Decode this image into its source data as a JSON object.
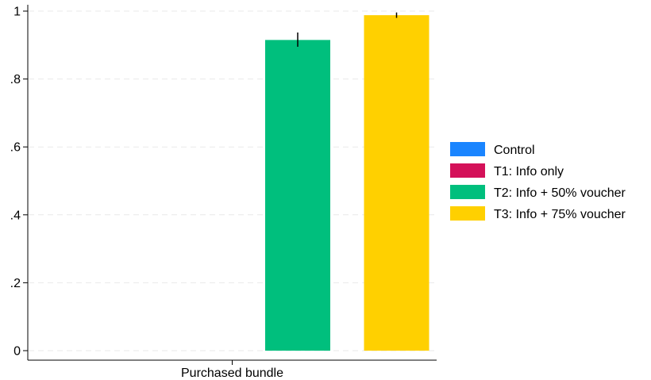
{
  "chart_data": {
    "type": "bar",
    "title": "",
    "xlabel": "",
    "ylabel": "",
    "categories": [
      "Purchased bundle"
    ],
    "ylim": [
      0,
      1
    ],
    "yticks": [
      0,
      0.2,
      0.4,
      0.6,
      0.8,
      1
    ],
    "ytick_labels": [
      "0",
      ".2",
      ".4",
      ".6",
      ".8",
      "1"
    ],
    "grid": true,
    "legend_position": "right",
    "series": [
      {
        "name": "Control",
        "values": [
          0
        ],
        "color": "#1a85ff",
        "ci": [
          0,
          0
        ]
      },
      {
        "name": "T1: Info only",
        "values": [
          0
        ],
        "color": "#d41159",
        "ci": [
          0,
          0
        ]
      },
      {
        "name": "T2: Info + 50% voucher",
        "values": [
          0.915
        ],
        "color": "#00bf7d",
        "ci": [
          0.895,
          0.937
        ]
      },
      {
        "name": "T3: Info + 75% voucher",
        "values": [
          0.988
        ],
        "color": "#ffd000",
        "ci": [
          0.98,
          0.996
        ]
      }
    ]
  }
}
